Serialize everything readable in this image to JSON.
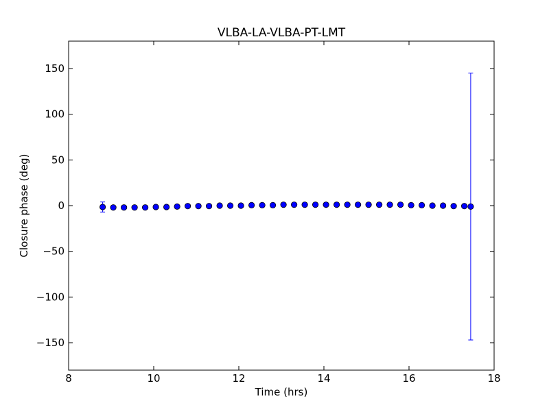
{
  "chart_data": {
    "type": "scatter",
    "title": "VLBA-LA-VLBA-PT-LMT",
    "xlabel": "Time (hrs)",
    "ylabel": "Closure phase (deg)",
    "xlim": [
      8,
      18
    ],
    "ylim": [
      -180,
      180
    ],
    "xticks": [
      8,
      10,
      12,
      14,
      16,
      18
    ],
    "xtick_labels": [
      "8",
      "10",
      "12",
      "14",
      "16",
      "18"
    ],
    "yticks": [
      -150,
      -100,
      -50,
      0,
      50,
      100,
      150
    ],
    "ytick_labels": [
      "−150",
      "−100",
      "−50",
      "0",
      "50",
      "100",
      "150"
    ],
    "grid": false,
    "legend": "none",
    "series": [
      {
        "color": "#0000ff",
        "marker": "circle",
        "error_bars": true,
        "x": [
          8.8,
          9.05,
          9.3,
          9.55,
          9.8,
          10.05,
          10.3,
          10.55,
          10.8,
          11.05,
          11.3,
          11.55,
          11.8,
          12.05,
          12.3,
          12.55,
          12.8,
          13.05,
          13.3,
          13.55,
          13.8,
          14.05,
          14.3,
          14.55,
          14.8,
          15.05,
          15.3,
          15.55,
          15.8,
          16.05,
          16.3,
          16.55,
          16.8,
          17.05,
          17.3,
          17.45
        ],
        "y": [
          -1.5,
          -2,
          -2,
          -2,
          -2,
          -1.5,
          -1.5,
          -1,
          -0.5,
          -0.5,
          -0.5,
          0,
          0,
          0,
          0.5,
          0.5,
          0.5,
          1,
          1,
          1,
          1,
          1,
          1,
          1,
          1,
          1,
          1,
          1,
          1,
          0.5,
          0.5,
          0,
          0,
          -0.5,
          -0.5,
          -1
        ],
        "yerr": [
          5.5,
          1,
          1,
          1,
          1,
          1,
          1,
          1,
          1,
          1,
          1,
          1,
          1,
          1,
          1,
          1,
          1,
          1,
          1,
          1,
          1,
          1,
          1,
          1,
          1,
          1,
          1,
          1,
          1,
          1,
          1,
          1,
          1,
          1,
          1,
          146
        ]
      }
    ]
  }
}
